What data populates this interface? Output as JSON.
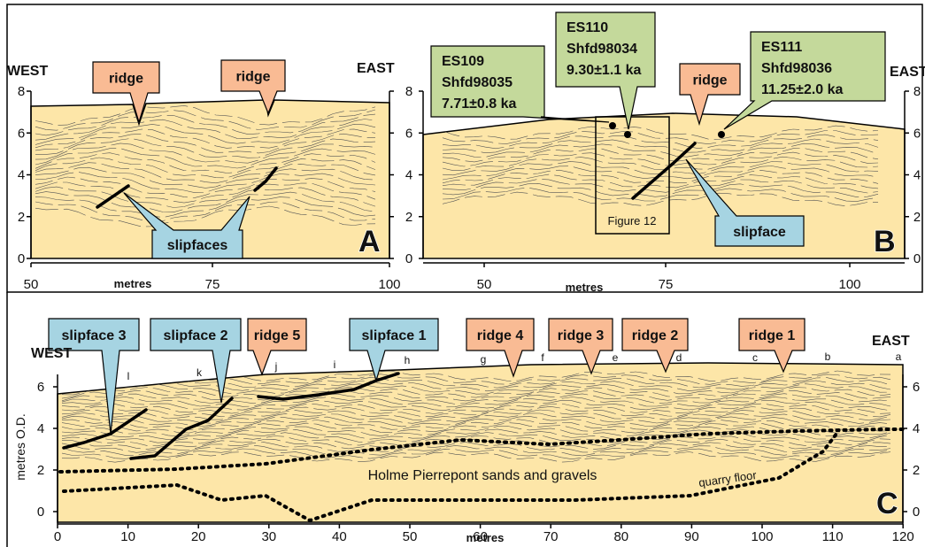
{
  "panel_a": {
    "label": "A",
    "west": "WEST",
    "east": "EAST",
    "ridges": [
      "ridge",
      "ridge"
    ],
    "slipfaces": "slipfaces",
    "y_ticks": [
      "0",
      "2",
      "4",
      "6",
      "8"
    ],
    "x_ticks": [
      "50",
      "75",
      "100"
    ],
    "x_label": "metres"
  },
  "panel_b": {
    "label": "B",
    "east": "EAST",
    "samples": [
      {
        "id": "ES109",
        "code": "Shfd98035",
        "age": "7.71±0.8 ka"
      },
      {
        "id": "ES110",
        "code": "Shfd98034",
        "age": "9.30±1.1 ka"
      },
      {
        "id": "ES111",
        "code": "Shfd98036",
        "age": "11.25±2.0 ka"
      }
    ],
    "ridge": "ridge",
    "slipface": "slipface",
    "figure_ref": "Figure 12",
    "y_ticks": [
      "0",
      "2",
      "4",
      "6",
      "8"
    ],
    "x_ticks": [
      "50",
      "75",
      "100"
    ],
    "x_label": "metres"
  },
  "panel_c": {
    "label": "C",
    "west": "WEST",
    "east": "EAST",
    "y_label": "metres O.D.",
    "callouts": [
      "slipface 3",
      "slipface 2",
      "ridge 5",
      "slipface 1",
      "ridge 4",
      "ridge 3",
      "ridge 2",
      "ridge 1"
    ],
    "letters": [
      "l",
      "k",
      "j",
      "i",
      "h",
      "g",
      "f",
      "e",
      "d",
      "c",
      "b",
      "a"
    ],
    "unit_name": "Holme Pierrepont sands and gravels",
    "quarry_floor": "quarry floor",
    "y_ticks": [
      "0",
      "2",
      "4",
      "6"
    ],
    "x_ticks": [
      "0",
      "10",
      "20",
      "30",
      "40",
      "50",
      "60",
      "70",
      "80",
      "90",
      "100",
      "110",
      "120"
    ],
    "x_label": "metres"
  }
}
